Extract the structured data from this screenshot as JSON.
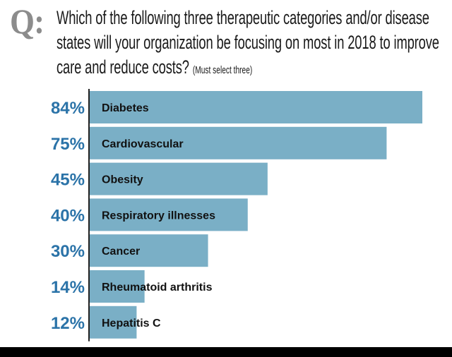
{
  "header": {
    "q_mark": "Q:",
    "question": "Which of the following three therapeutic categories and/or disease states will your organization be focusing on most in 2018 to improve care and reduce costs?",
    "note": "(Must select three)"
  },
  "colors": {
    "bar": "#7aafc6",
    "axis": "#222222",
    "percent": "#2b73a8",
    "q_mark": "#8c8c8c"
  },
  "chart_data": {
    "type": "bar",
    "orientation": "horizontal",
    "categories": [
      "Diabetes",
      "Cardiovascular",
      "Obesity",
      "Respiratory illnesses",
      "Cancer",
      "Rheumatoid arthritis",
      "Hepatitis C"
    ],
    "values": [
      84,
      75,
      45,
      40,
      30,
      14,
      12
    ],
    "value_labels": [
      "84%",
      "75%",
      "45%",
      "40%",
      "30%",
      "14%",
      "12%"
    ],
    "unit": "%",
    "xlim": [
      0,
      84
    ],
    "grid": false,
    "legend": "none"
  }
}
